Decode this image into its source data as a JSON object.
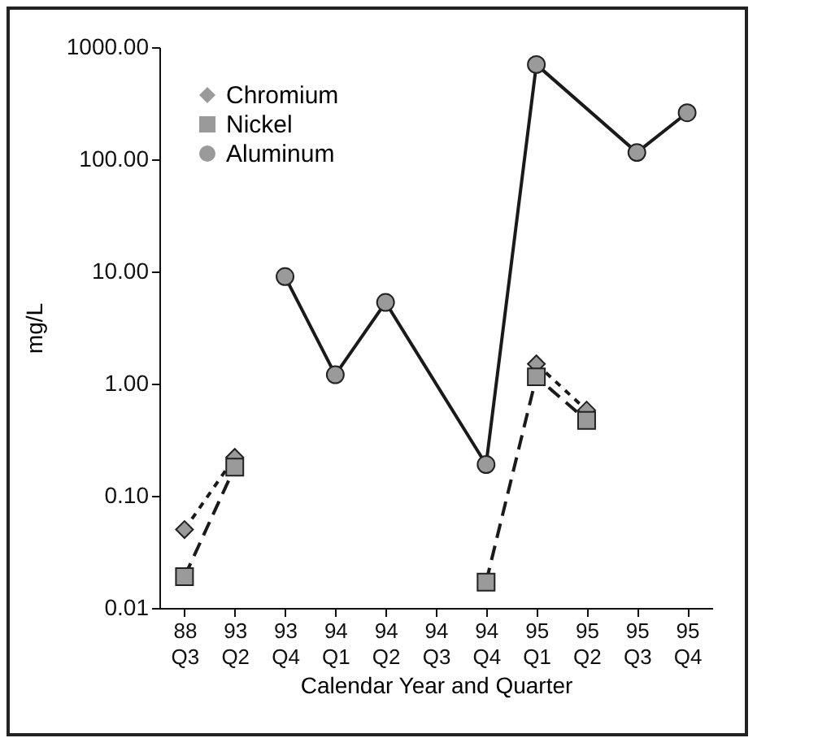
{
  "chart_data": {
    "type": "line",
    "xlabel": "Calendar Year and Quarter",
    "ylabel": "mg/L",
    "categories": [
      "88 Q3",
      "93 Q2",
      "93 Q4",
      "94 Q1",
      "94 Q2",
      "94 Q3",
      "94 Q4",
      "95 Q1",
      "95 Q2",
      "95 Q3",
      "95 Q4"
    ],
    "log": "y",
    "ylim": [
      0.01,
      1000
    ],
    "yticks": [
      {
        "value": 0.01,
        "label": "0.01"
      },
      {
        "value": 0.1,
        "label": "0.10"
      },
      {
        "value": 1,
        "label": "1.00"
      },
      {
        "value": 10,
        "label": "10.00"
      },
      {
        "value": 100,
        "label": "100.00"
      },
      {
        "value": 1000,
        "label": "1000.00"
      }
    ],
    "legend": "top left",
    "grid": false,
    "series": [
      {
        "name": "Chromium",
        "color": "#1a1a1a",
        "marker": "diamond",
        "line_style": "dotted",
        "values": [
          0.05,
          0.22,
          null,
          null,
          null,
          null,
          null,
          1.5,
          0.58,
          null,
          null
        ]
      },
      {
        "name": "Nickel",
        "color": "#1a1a1a",
        "marker": "square",
        "line_style": "dashed",
        "values": [
          0.019,
          0.18,
          null,
          null,
          null,
          null,
          0.017,
          1.15,
          0.47,
          null,
          null
        ]
      },
      {
        "name": "Aluminum",
        "color": "#1a1a1a",
        "marker": "circle",
        "line_style": "solid",
        "x": [
          "93 Q4",
          "94 Q1",
          "94 Q2",
          "94 Q4",
          "95 Q1",
          "95 Q3",
          "95 Q4"
        ],
        "values": [
          9,
          1.2,
          5.3,
          0.19,
          700,
          115,
          260
        ]
      }
    ]
  }
}
